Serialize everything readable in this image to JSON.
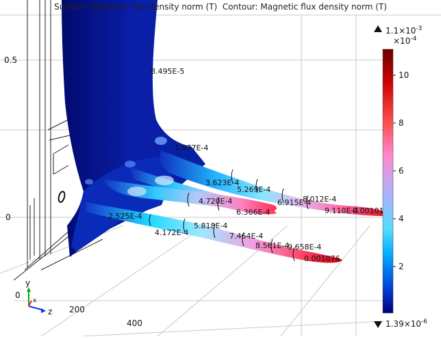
{
  "title": {
    "surface": "Surface: Magnetic flux density norm (T)",
    "contour": "Contour: Magnetic flux density norm (T)"
  },
  "axes": {
    "y_ticks": [
      "0.5",
      "0"
    ],
    "z_ticks": [
      "200",
      "400"
    ],
    "corner_tick": "0",
    "triad": {
      "x": "x",
      "y": "y",
      "z": "z"
    }
  },
  "contour_labels": [
    "8.495E-5",
    "1.977E-4",
    "3.623E-4",
    "5.269E-4",
    "8.012E-4",
    "4.720E-4",
    "6.915E-4",
    "9.110E-4",
    "0.00101",
    "6.366E-4",
    "2.525E-4",
    "5.818E-4",
    "4.172E-4",
    "7.464E-4",
    "8.561E-4",
    "9.658E-4",
    "0.001076"
  ],
  "colorbar": {
    "max_label": "1.1×10",
    "max_exp": "-3",
    "scale_label": "×10",
    "scale_exp": "-4",
    "min_label": "1.39×10",
    "min_exp": "-6",
    "ticks": [
      "10",
      "8",
      "6",
      "4",
      "2"
    ],
    "colors": [
      "#6a0000",
      "#cc0000",
      "#ff5050",
      "#ff88cc",
      "#c9a6ee",
      "#9ab8ff",
      "#55ddff",
      "#00aaff",
      "#0044dd",
      "#00007a"
    ]
  },
  "colors": {
    "surface_main": "#0a1ea8",
    "surface_dark": "#020a6e",
    "grid": "#c8c8c8"
  }
}
